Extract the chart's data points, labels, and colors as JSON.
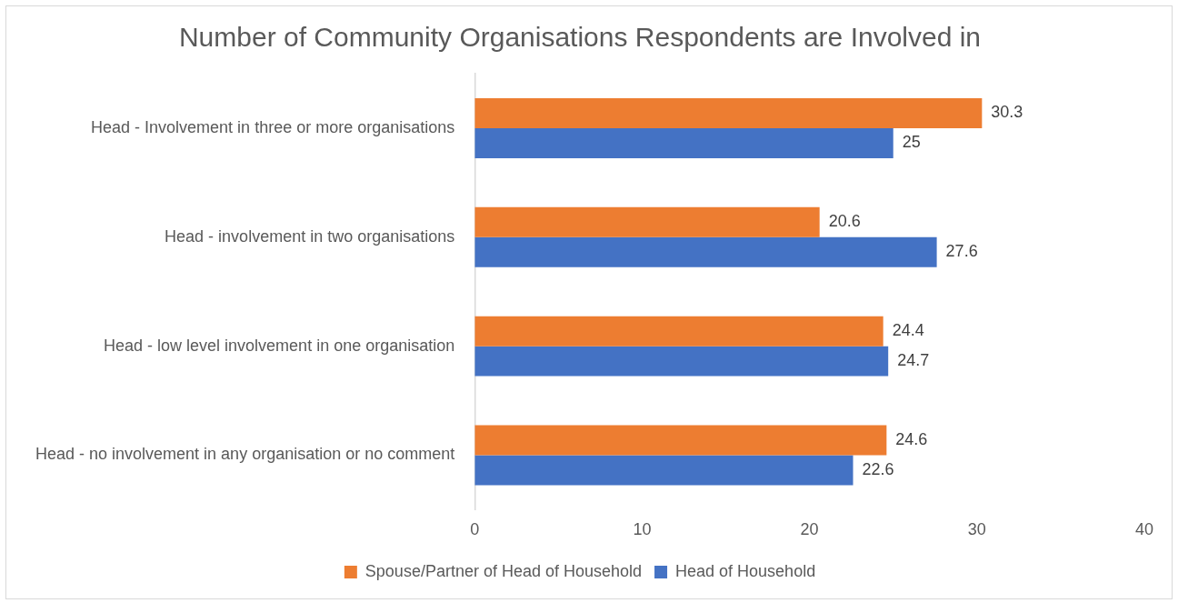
{
  "chart_data": {
    "type": "bar",
    "orientation": "horizontal",
    "title": "Number of Community Organisations Respondents are Involved in",
    "categories": [
      "Head - Involvement in three or more organisations",
      "Head - involvement in two organisations",
      "Head - low level involvement in one organisation",
      "Head - no involvement in any organisation or no comment"
    ],
    "series": [
      {
        "name": "Spouse/Partner of Head of Household",
        "color": "#ed7d31",
        "values": [
          30.3,
          20.6,
          24.4,
          24.6
        ]
      },
      {
        "name": "Head of Household",
        "color": "#4472c4",
        "values": [
          25,
          27.6,
          24.7,
          22.6
        ]
      }
    ],
    "xlim": [
      0,
      40
    ],
    "xticks": [
      0,
      10,
      20,
      30,
      40
    ],
    "grid": false,
    "legend": "bottom",
    "data_labels": true
  }
}
